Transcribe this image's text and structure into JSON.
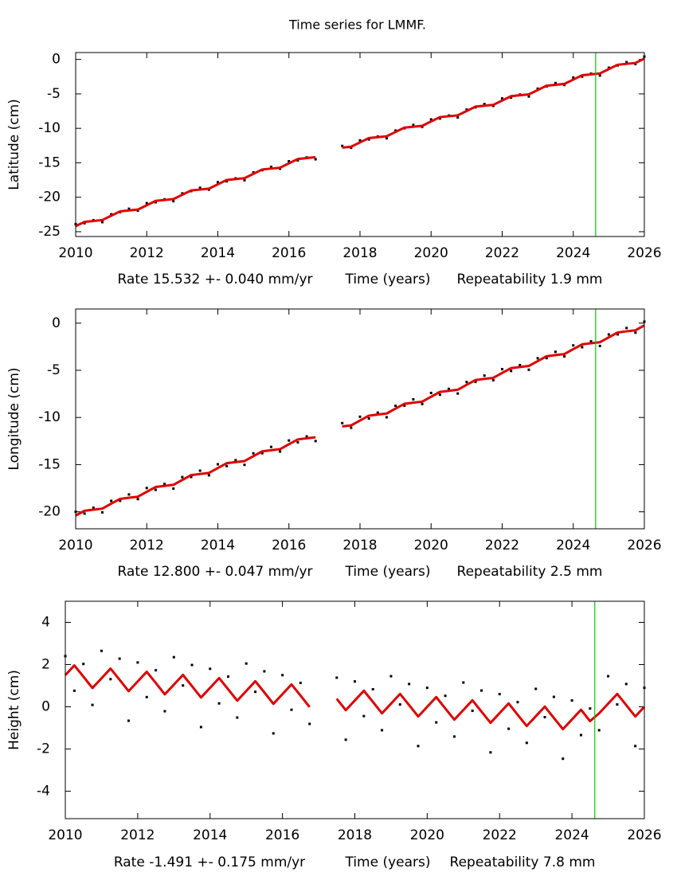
{
  "chart_data": [
    {
      "type": "scatter",
      "title": "Time series for LMMF.",
      "ylabel": "Latitude (cm)",
      "rate_label": "Rate 15.532 +- 0.040 mm/yr",
      "xlabel": "Time (years)",
      "repeatability_label": "Repeatability 1.9 mm",
      "x": [
        2010,
        2010.25,
        2010.5,
        2010.75,
        2011,
        2011.25,
        2011.5,
        2011.75,
        2012,
        2012.25,
        2012.5,
        2012.75,
        2013,
        2013.25,
        2013.5,
        2013.75,
        2014,
        2014.25,
        2014.5,
        2014.75,
        2015,
        2015.25,
        2015.5,
        2015.75,
        2016,
        2016.25,
        2016.5,
        2016.75,
        2017,
        2017.25,
        2017.5,
        2017.75,
        2018,
        2018.25,
        2018.5,
        2018.75,
        2019,
        2019.25,
        2019.5,
        2019.75,
        2020,
        2020.25,
        2020.5,
        2020.75,
        2021,
        2021.25,
        2021.5,
        2021.75,
        2022,
        2022.25,
        2022.5,
        2022.75,
        2023,
        2023.25,
        2023.5,
        2023.75,
        2024,
        2024.25,
        2024.5,
        2024.75,
        2025,
        2025.25,
        2025.5,
        2025.75,
        2026
      ],
      "series": [
        {
          "mode": "markers",
          "color": "#000000",
          "values": [
            -23.9,
            -23.77,
            -23.34,
            -23.61,
            -22.48,
            -22.15,
            -21.67,
            -21.94,
            -20.86,
            -20.73,
            -20.3,
            -20.57,
            -19.44,
            -19.11,
            -18.63,
            -18.9,
            -17.82,
            -17.69,
            -17.26,
            -17.53,
            -16.4,
            -16.07,
            -15.59,
            -15.86,
            -14.78,
            -14.65,
            -14.22,
            -14.49,
            null,
            null,
            -12.55,
            -12.82,
            -11.74,
            -11.61,
            -11.18,
            -11.45,
            -10.32,
            -9.99,
            -9.51,
            -9.78,
            -8.7,
            -8.57,
            -8.14,
            -8.41,
            -7.28,
            -6.95,
            -6.47,
            -6.74,
            -5.66,
            -5.53,
            -5.1,
            -5.37,
            -4.24,
            -3.91,
            -3.43,
            -3.7,
            -2.62,
            -2.49,
            -2.06,
            -2.33,
            -1.2,
            -0.87,
            -0.39,
            -0.66,
            0.42
          ]
        },
        {
          "mode": "lines",
          "color": "#e00000",
          "values": [
            -24.2,
            -23.57,
            -23.44,
            -23.31,
            -22.68,
            -22.05,
            -21.92,
            -21.79,
            -21.16,
            -20.53,
            -20.4,
            -20.27,
            -19.64,
            -19.01,
            -18.88,
            -18.75,
            -18.12,
            -17.49,
            -17.36,
            -17.23,
            -16.6,
            -15.97,
            -15.84,
            -15.71,
            -15.08,
            -14.45,
            -14.32,
            -14.19,
            null,
            null,
            -12.8,
            -12.67,
            -12.04,
            -11.41,
            -11.28,
            -11.15,
            -10.52,
            -9.89,
            -9.76,
            -9.63,
            -9.0,
            -8.37,
            -8.24,
            -8.11,
            -7.48,
            -6.85,
            -6.72,
            -6.59,
            -5.96,
            -5.33,
            -5.2,
            -5.07,
            -4.44,
            -3.81,
            -3.68,
            -3.55,
            -2.92,
            -2.29,
            -2.16,
            -2.03,
            -1.4,
            -0.77,
            -0.64,
            -0.51,
            0.12
          ]
        }
      ],
      "xlim": [
        2010,
        2026
      ],
      "xticks": [
        2010,
        2012,
        2014,
        2016,
        2018,
        2020,
        2022,
        2024,
        2026
      ],
      "ylim": [
        -25.7,
        1.0
      ],
      "yticks": [
        0,
        -5,
        -10,
        -15,
        -20,
        -25
      ],
      "vline": {
        "x": 2024.63,
        "color": "#00cc00"
      }
    },
    {
      "type": "scatter",
      "ylabel": "Longitude (cm)",
      "rate_label": "Rate 12.800 +- 0.047 mm/yr",
      "xlabel": "Time (years)",
      "repeatability_label": "Repeatability 2.5 mm",
      "x": [
        2010,
        2010.25,
        2010.5,
        2010.75,
        2011,
        2011.25,
        2011.5,
        2011.75,
        2012,
        2012.25,
        2012.5,
        2012.75,
        2013,
        2013.25,
        2013.5,
        2013.75,
        2014,
        2014.25,
        2014.5,
        2014.75,
        2015,
        2015.25,
        2015.5,
        2015.75,
        2016,
        2016.25,
        2016.5,
        2016.75,
        2017,
        2017.25,
        2017.5,
        2017.75,
        2018,
        2018.25,
        2018.5,
        2018.75,
        2019,
        2019.25,
        2019.5,
        2019.75,
        2020,
        2020.25,
        2020.5,
        2020.75,
        2021,
        2021.25,
        2021.5,
        2021.75,
        2022,
        2022.25,
        2022.5,
        2022.75,
        2023,
        2023.25,
        2023.5,
        2023.75,
        2024,
        2024.25,
        2024.5,
        2024.75,
        2025,
        2025.25,
        2025.5,
        2025.75,
        2026
      ],
      "series": [
        {
          "mode": "markers",
          "color": "#000000",
          "values": [
            -20.0,
            -20.19,
            -19.57,
            -20.06,
            -18.84,
            -18.83,
            -18.16,
            -18.65,
            -17.48,
            -17.67,
            -17.05,
            -17.54,
            -16.32,
            -16.31,
            -15.64,
            -16.13,
            -14.96,
            -15.15,
            -14.53,
            -15.02,
            -13.8,
            -13.79,
            -13.12,
            -13.61,
            -12.44,
            -12.63,
            -12.01,
            -12.5,
            null,
            null,
            -10.6,
            -11.09,
            -9.92,
            -10.11,
            -9.49,
            -9.98,
            -8.76,
            -8.75,
            -8.08,
            -8.57,
            -7.4,
            -7.59,
            -6.97,
            -7.46,
            -6.24,
            -6.23,
            -5.56,
            -6.05,
            -4.88,
            -5.07,
            -4.45,
            -4.94,
            -3.72,
            -3.71,
            -3.04,
            -3.53,
            -2.36,
            -2.55,
            -1.93,
            -2.42,
            -1.2,
            -1.19,
            -0.52,
            -1.01,
            0.16
          ]
        },
        {
          "mode": "lines",
          "color": "#e00000",
          "values": [
            -20.4,
            -19.89,
            -19.77,
            -19.66,
            -19.14,
            -18.63,
            -18.51,
            -18.4,
            -17.88,
            -17.37,
            -17.25,
            -17.14,
            -16.62,
            -16.11,
            -15.99,
            -15.88,
            -15.36,
            -14.85,
            -14.73,
            -14.62,
            -14.1,
            -13.59,
            -13.47,
            -13.36,
            -12.84,
            -12.33,
            -12.21,
            -12.1,
            null,
            null,
            -10.95,
            -10.84,
            -10.32,
            -9.81,
            -9.69,
            -9.58,
            -9.06,
            -8.55,
            -8.43,
            -8.32,
            -7.8,
            -7.29,
            -7.17,
            -7.06,
            -6.54,
            -6.03,
            -5.91,
            -5.8,
            -5.28,
            -4.77,
            -4.65,
            -4.54,
            -4.02,
            -3.51,
            -3.39,
            -3.28,
            -2.76,
            -2.25,
            -2.13,
            -2.02,
            -1.5,
            -0.99,
            -0.87,
            -0.76,
            -0.24
          ]
        }
      ],
      "xlim": [
        2010,
        2026
      ],
      "xticks": [
        2010,
        2012,
        2014,
        2016,
        2018,
        2020,
        2022,
        2024,
        2026
      ],
      "ylim": [
        -21.8,
        1.5
      ],
      "yticks": [
        0,
        -5,
        -10,
        -15,
        -20
      ],
      "vline": {
        "x": 2024.63,
        "color": "#00cc00"
      }
    },
    {
      "type": "scatter",
      "ylabel": "Height (cm)",
      "rate_label": "Rate -1.491 +- 0.175 mm/yr",
      "xlabel": "Time (years)",
      "repeatability_label": "Repeatability 7.8 mm",
      "x": [
        2010,
        2010.25,
        2010.5,
        2010.75,
        2011,
        2011.25,
        2011.5,
        2011.75,
        2012,
        2012.25,
        2012.5,
        2012.75,
        2013,
        2013.25,
        2013.5,
        2013.75,
        2014,
        2014.25,
        2014.5,
        2014.75,
        2015,
        2015.25,
        2015.5,
        2015.75,
        2016,
        2016.25,
        2016.5,
        2016.75,
        2017,
        2017.25,
        2017.5,
        2017.75,
        2018,
        2018.25,
        2018.5,
        2018.75,
        2019,
        2019.25,
        2019.5,
        2019.75,
        2020,
        2020.25,
        2020.5,
        2020.75,
        2021,
        2021.25,
        2021.5,
        2021.75,
        2022,
        2022.25,
        2022.5,
        2022.75,
        2023,
        2023.25,
        2023.5,
        2023.75,
        2024,
        2024.25,
        2024.5,
        2024.75,
        2025,
        2025.25,
        2025.5,
        2025.75,
        2026
      ],
      "series": [
        {
          "mode": "markers",
          "color": "#000000",
          "values": [
            2.4,
            0.76,
            2.03,
            0.09,
            2.65,
            1.31,
            2.28,
            -0.66,
            2.1,
            0.46,
            1.73,
            -0.21,
            2.35,
            1.01,
            1.98,
            -0.96,
            1.8,
            0.16,
            1.43,
            -0.51,
            2.05,
            0.71,
            1.68,
            -1.26,
            1.5,
            -0.14,
            1.13,
            -0.81,
            null,
            null,
            1.38,
            -1.56,
            1.2,
            -0.44,
            0.83,
            -1.11,
            1.45,
            0.11,
            1.08,
            -1.86,
            0.9,
            -0.74,
            0.52,
            -1.41,
            1.15,
            -0.19,
            0.77,
            -2.16,
            0.6,
            -1.04,
            0.22,
            -1.71,
            0.85,
            -0.49,
            0.47,
            -2.46,
            0.3,
            -1.34,
            -0.08,
            -1.11,
            1.45,
            0.11,
            1.08,
            -1.86,
            0.9
          ]
        },
        {
          "mode": "lines",
          "color": "#e00000",
          "values": [
            1.5,
            1.96,
            1.43,
            0.89,
            1.35,
            1.81,
            1.28,
            0.74,
            1.2,
            1.66,
            1.13,
            0.59,
            1.05,
            1.51,
            0.98,
            0.44,
            0.9,
            1.36,
            0.83,
            0.29,
            0.75,
            1.21,
            0.68,
            0.14,
            0.6,
            1.06,
            0.53,
            -0.01,
            null,
            null,
            0.38,
            -0.16,
            0.3,
            0.76,
            0.23,
            -0.31,
            0.15,
            0.61,
            0.08,
            -0.46,
            0.0,
            0.46,
            -0.08,
            -0.61,
            -0.15,
            0.31,
            -0.23,
            -0.76,
            -0.3,
            0.16,
            -0.38,
            -0.91,
            -0.45,
            0.01,
            -0.53,
            -1.06,
            -0.6,
            -0.14,
            -0.68,
            -0.31,
            0.15,
            0.61,
            0.08,
            -0.46,
            0.0
          ]
        }
      ],
      "xlim": [
        2010,
        2026
      ],
      "xticks": [
        2010,
        2012,
        2014,
        2016,
        2018,
        2020,
        2022,
        2024,
        2026
      ],
      "ylim": [
        -5.3,
        5.0
      ],
      "yticks": [
        4,
        2,
        0,
        -2,
        -4
      ],
      "vline": {
        "x": 2024.63,
        "color": "#00cc00"
      }
    }
  ]
}
